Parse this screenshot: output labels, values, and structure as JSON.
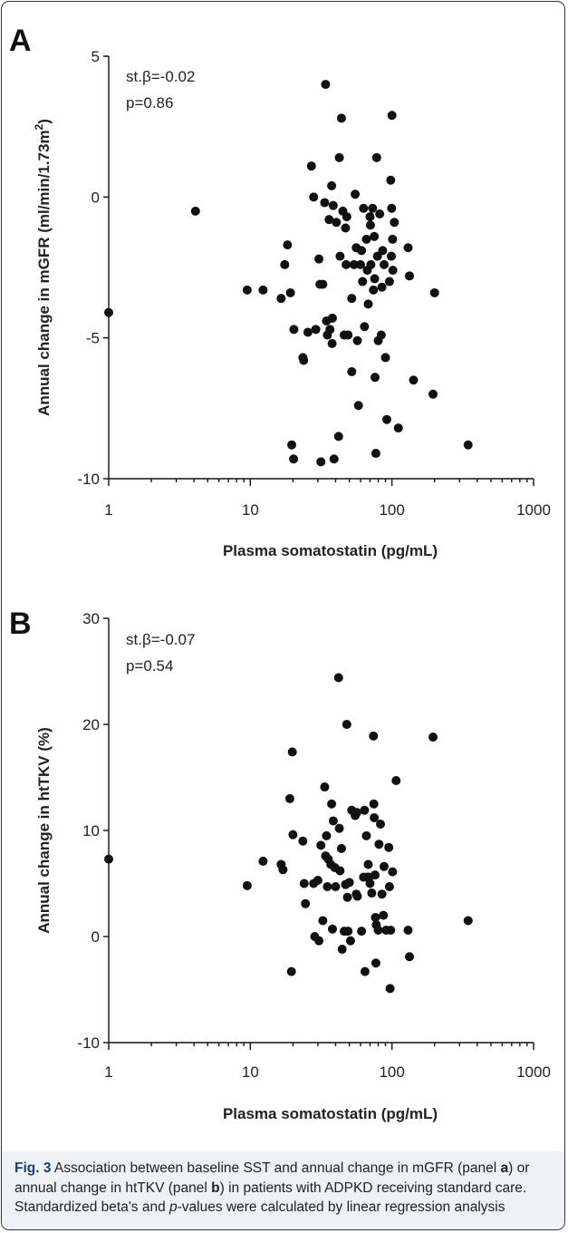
{
  "chart_data": [
    {
      "type": "scatter",
      "panel": "A",
      "xlabel": "Plasma somatostatin (pg/mL)",
      "ylabel": "Annual change in mGFR (ml/min/1.73m²)",
      "ylabel_parts": {
        "main": "Annual change in mGFR (ml/min/1.73m",
        "sup": "2",
        "end": ")"
      },
      "x_scale": "log",
      "xlim": [
        1,
        1000
      ],
      "ylim": [
        -10,
        5
      ],
      "x_ticks": [
        "1",
        "10",
        "100",
        "1000"
      ],
      "y_ticks": [
        "5",
        "0",
        "-5",
        "-10"
      ],
      "annotations": [
        "st.β=-0.02",
        "p=0.86"
      ],
      "points": [
        {
          "x": 1.0,
          "y": -4.1
        },
        {
          "x": 4.1,
          "y": -0.5
        },
        {
          "x": 9.5,
          "y": -3.3
        },
        {
          "x": 12.3,
          "y": -3.3
        },
        {
          "x": 16.5,
          "y": -3.6
        },
        {
          "x": 17.5,
          "y": -2.4
        },
        {
          "x": 18.3,
          "y": -1.7
        },
        {
          "x": 19.2,
          "y": -3.4
        },
        {
          "x": 19.6,
          "y": -8.8
        },
        {
          "x": 20.2,
          "y": -9.3
        },
        {
          "x": 20.3,
          "y": -4.7
        },
        {
          "x": 23.5,
          "y": -5.7
        },
        {
          "x": 23.8,
          "y": -5.8
        },
        {
          "x": 25.5,
          "y": -4.8
        },
        {
          "x": 27.0,
          "y": 1.1
        },
        {
          "x": 28.0,
          "y": 0.0
        },
        {
          "x": 29.0,
          "y": -4.7
        },
        {
          "x": 30.5,
          "y": -2.2
        },
        {
          "x": 31.0,
          "y": -3.1
        },
        {
          "x": 31.5,
          "y": -9.4
        },
        {
          "x": 32.5,
          "y": -3.1
        },
        {
          "x": 33.5,
          "y": -0.2
        },
        {
          "x": 34.0,
          "y": 4.0
        },
        {
          "x": 34.5,
          "y": -4.4
        },
        {
          "x": 35.0,
          "y": -4.9
        },
        {
          "x": 36.0,
          "y": -0.8
        },
        {
          "x": 36.5,
          "y": -4.7
        },
        {
          "x": 37.5,
          "y": 0.4
        },
        {
          "x": 37.8,
          "y": -5.2
        },
        {
          "x": 38.0,
          "y": -4.3
        },
        {
          "x": 38.5,
          "y": -0.3
        },
        {
          "x": 39.0,
          "y": -9.3
        },
        {
          "x": 40.5,
          "y": -0.9
        },
        {
          "x": 42.0,
          "y": -8.5
        },
        {
          "x": 42.5,
          "y": 1.4
        },
        {
          "x": 43.0,
          "y": -2.1
        },
        {
          "x": 44.0,
          "y": 2.8
        },
        {
          "x": 45.0,
          "y": -0.5
        },
        {
          "x": 46.0,
          "y": -4.9
        },
        {
          "x": 47.0,
          "y": -1.1
        },
        {
          "x": 47.5,
          "y": -2.4
        },
        {
          "x": 48.0,
          "y": -0.7
        },
        {
          "x": 49.0,
          "y": -4.9
        },
        {
          "x": 52.0,
          "y": -3.6
        },
        {
          "x": 52.0,
          "y": -6.2
        },
        {
          "x": 54.0,
          "y": -2.4
        },
        {
          "x": 55.0,
          "y": 0.1
        },
        {
          "x": 56.0,
          "y": -1.8
        },
        {
          "x": 57.0,
          "y": -5.1
        },
        {
          "x": 58.0,
          "y": -7.4
        },
        {
          "x": 60.0,
          "y": -2.4
        },
        {
          "x": 61.0,
          "y": -1.9
        },
        {
          "x": 62.0,
          "y": -3.0
        },
        {
          "x": 63.0,
          "y": -0.4
        },
        {
          "x": 64.0,
          "y": -4.6
        },
        {
          "x": 66.0,
          "y": -1.5
        },
        {
          "x": 67.0,
          "y": -2.6
        },
        {
          "x": 68.0,
          "y": -3.8
        },
        {
          "x": 70.0,
          "y": -0.7
        },
        {
          "x": 70.5,
          "y": -1.0
        },
        {
          "x": 71.0,
          "y": -2.4
        },
        {
          "x": 73.0,
          "y": -0.4
        },
        {
          "x": 74.0,
          "y": -3.3
        },
        {
          "x": 75.0,
          "y": -1.4
        },
        {
          "x": 75.5,
          "y": -2.9
        },
        {
          "x": 76.0,
          "y": -6.4
        },
        {
          "x": 77.0,
          "y": -9.1
        },
        {
          "x": 78.0,
          "y": 1.4
        },
        {
          "x": 79.0,
          "y": -2.1
        },
        {
          "x": 80.0,
          "y": -5.1
        },
        {
          "x": 82.0,
          "y": -0.6
        },
        {
          "x": 84.0,
          "y": -4.9
        },
        {
          "x": 85.0,
          "y": -3.2
        },
        {
          "x": 86.0,
          "y": -1.9
        },
        {
          "x": 88.0,
          "y": -2.4
        },
        {
          "x": 90.0,
          "y": -5.7
        },
        {
          "x": 92.0,
          "y": -7.9
        },
        {
          "x": 96.0,
          "y": -3.0
        },
        {
          "x": 98.0,
          "y": 0.6
        },
        {
          "x": 99.0,
          "y": -2.1
        },
        {
          "x": 99.5,
          "y": -0.4
        },
        {
          "x": 100.0,
          "y": 2.9
        },
        {
          "x": 101.0,
          "y": -1.5
        },
        {
          "x": 101.5,
          "y": -2.6
        },
        {
          "x": 104.0,
          "y": -0.9
        },
        {
          "x": 111.0,
          "y": -8.2
        },
        {
          "x": 130.0,
          "y": -1.8
        },
        {
          "x": 133.0,
          "y": -2.8
        },
        {
          "x": 142.0,
          "y": -6.5
        },
        {
          "x": 195.0,
          "y": -7.0
        },
        {
          "x": 200.0,
          "y": -3.4
        },
        {
          "x": 345.0,
          "y": -8.8
        }
      ]
    },
    {
      "type": "scatter",
      "panel": "B",
      "xlabel": "Plasma somatostatin (pg/mL)",
      "ylabel": "Annual change in htTKV (%)",
      "x_scale": "log",
      "xlim": [
        1,
        1000
      ],
      "ylim": [
        -10,
        30
      ],
      "x_ticks": [
        "1",
        "10",
        "100",
        "1000"
      ],
      "y_ticks": [
        "30",
        "20",
        "10",
        "0",
        "-10"
      ],
      "annotations": [
        "st.β=-0.07",
        "p=0.54"
      ],
      "points": [
        {
          "x": 1.0,
          "y": 7.3
        },
        {
          "x": 9.5,
          "y": 4.8
        },
        {
          "x": 12.3,
          "y": 7.1
        },
        {
          "x": 16.5,
          "y": 6.8
        },
        {
          "x": 17.0,
          "y": 6.3
        },
        {
          "x": 19.0,
          "y": 13.0
        },
        {
          "x": 19.5,
          "y": -3.3
        },
        {
          "x": 19.8,
          "y": 17.4
        },
        {
          "x": 20.0,
          "y": 9.6
        },
        {
          "x": 23.5,
          "y": 9.0
        },
        {
          "x": 24.0,
          "y": 5.0
        },
        {
          "x": 24.5,
          "y": 3.1
        },
        {
          "x": 28.0,
          "y": 5.0
        },
        {
          "x": 28.5,
          "y": 0.0
        },
        {
          "x": 30.0,
          "y": 5.3
        },
        {
          "x": 30.5,
          "y": -0.4
        },
        {
          "x": 31.5,
          "y": 8.6
        },
        {
          "x": 32.5,
          "y": 1.5
        },
        {
          "x": 33.5,
          "y": 14.1
        },
        {
          "x": 34.0,
          "y": 7.6
        },
        {
          "x": 34.5,
          "y": 9.5
        },
        {
          "x": 35.0,
          "y": 4.7
        },
        {
          "x": 35.5,
          "y": 7.3
        },
        {
          "x": 37.0,
          "y": 6.8
        },
        {
          "x": 37.5,
          "y": 12.5
        },
        {
          "x": 38.0,
          "y": 0.7
        },
        {
          "x": 38.5,
          "y": 10.9
        },
        {
          "x": 39.5,
          "y": 6.5
        },
        {
          "x": 40.0,
          "y": 4.7
        },
        {
          "x": 42.0,
          "y": 24.4
        },
        {
          "x": 42.5,
          "y": 10.2
        },
        {
          "x": 43.0,
          "y": 6.2
        },
        {
          "x": 44.0,
          "y": 8.3
        },
        {
          "x": 44.5,
          "y": -1.2
        },
        {
          "x": 46.0,
          "y": 0.5
        },
        {
          "x": 47.0,
          "y": 4.9
        },
        {
          "x": 48.0,
          "y": 20.0
        },
        {
          "x": 48.5,
          "y": 3.7
        },
        {
          "x": 49.0,
          "y": 0.5
        },
        {
          "x": 50.0,
          "y": 5.1
        },
        {
          "x": 51.0,
          "y": -0.4
        },
        {
          "x": 52.0,
          "y": 11.9
        },
        {
          "x": 55.0,
          "y": 11.4
        },
        {
          "x": 56.0,
          "y": 4.0
        },
        {
          "x": 56.5,
          "y": 11.7
        },
        {
          "x": 57.0,
          "y": 3.8
        },
        {
          "x": 61.0,
          "y": 0.5
        },
        {
          "x": 63.0,
          "y": 5.6
        },
        {
          "x": 64.0,
          "y": 11.9
        },
        {
          "x": 64.5,
          "y": -3.3
        },
        {
          "x": 66.0,
          "y": 9.5
        },
        {
          "x": 67.0,
          "y": 5.6
        },
        {
          "x": 68.0,
          "y": 6.8
        },
        {
          "x": 69.0,
          "y": 5.6
        },
        {
          "x": 70.0,
          "y": 5.0
        },
        {
          "x": 72.0,
          "y": 4.1
        },
        {
          "x": 74.0,
          "y": 18.9
        },
        {
          "x": 74.5,
          "y": 12.5
        },
        {
          "x": 75.0,
          "y": 11.2
        },
        {
          "x": 76.0,
          "y": 5.8
        },
        {
          "x": 76.5,
          "y": 1.8
        },
        {
          "x": 77.0,
          "y": -2.5
        },
        {
          "x": 77.5,
          "y": 1.1
        },
        {
          "x": 80.0,
          "y": 0.6
        },
        {
          "x": 81.0,
          "y": 8.7
        },
        {
          "x": 83.0,
          "y": 10.6
        },
        {
          "x": 85.0,
          "y": 4.0
        },
        {
          "x": 87.0,
          "y": 2.0
        },
        {
          "x": 88.0,
          "y": 6.6
        },
        {
          "x": 91.0,
          "y": 0.6
        },
        {
          "x": 95.0,
          "y": 8.4
        },
        {
          "x": 96.0,
          "y": 4.7
        },
        {
          "x": 97.0,
          "y": -4.9
        },
        {
          "x": 98.0,
          "y": 0.6
        },
        {
          "x": 101.0,
          "y": 6.1
        },
        {
          "x": 107.0,
          "y": 14.7
        },
        {
          "x": 130.0,
          "y": 0.6
        },
        {
          "x": 133.0,
          "y": -1.9
        },
        {
          "x": 195.0,
          "y": 18.8
        },
        {
          "x": 345.0,
          "y": 1.5
        }
      ]
    }
  ],
  "caption": {
    "fig_label": "Fig. 3",
    "segments": [
      {
        "text": " Association between baseline SST and annual change in mGFR (panel ",
        "style": "normal"
      },
      {
        "text": "a",
        "style": "bold"
      },
      {
        "text": ") or annual change in htTKV (panel ",
        "style": "normal"
      },
      {
        "text": "b",
        "style": "bold"
      },
      {
        "text": ") in patients with ADPKD receiving standard care. Standardized beta's and ",
        "style": "normal"
      },
      {
        "text": "p",
        "style": "italic"
      },
      {
        "text": "-values were calculated by linear regression analysis",
        "style": "normal"
      }
    ]
  },
  "colors": {
    "point": "#111111",
    "caption_background": "#eef2f6",
    "fig_label": "#1d3e6e",
    "frame": "#333333"
  }
}
